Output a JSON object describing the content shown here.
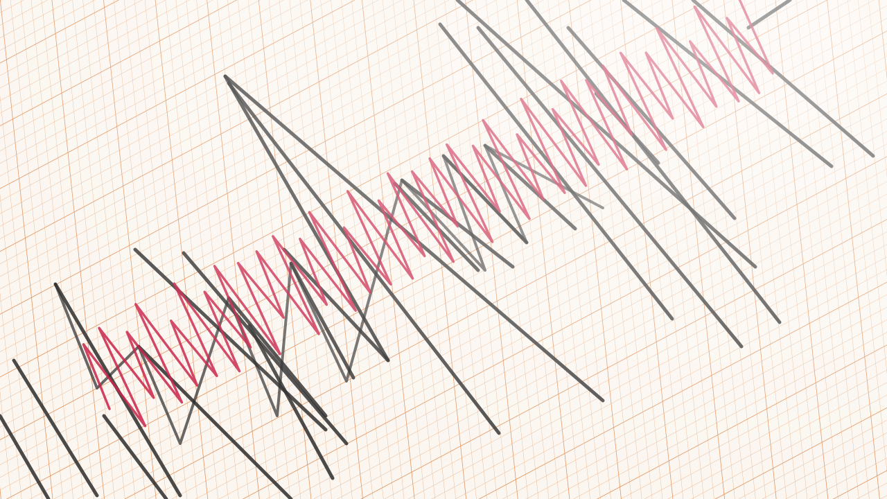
{
  "image": {
    "subject": "seismograph-trace",
    "colors": {
      "paper": "#fbf6f0",
      "grid_minor": "#e9b48a",
      "grid_major": "#e08a4e",
      "trace_black": "#2b2b2b",
      "trace_red": "#c8234a"
    }
  }
}
